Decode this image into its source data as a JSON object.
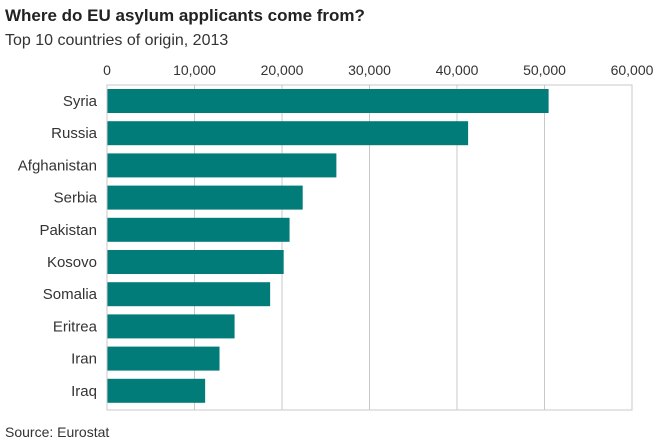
{
  "header": {
    "title": "Where do EU asylum applicants come from?",
    "subtitle": "Top 10 countries of origin, 2013"
  },
  "footer": {
    "source": "Source: Eurostat"
  },
  "colors": {
    "bar": "#017c78",
    "grid": "#c8c8c8",
    "frame": "#c8c8c8",
    "text": "#333333"
  },
  "chart_data": {
    "type": "bar",
    "orientation": "horizontal",
    "title": "Where do EU asylum applicants come from?",
    "subtitle": "Top 10 countries of origin, 2013",
    "categories": [
      "Syria",
      "Russia",
      "Afghanistan",
      "Serbia",
      "Pakistan",
      "Kosovo",
      "Somalia",
      "Eritrea",
      "Iran",
      "Iraq"
    ],
    "values": [
      50470,
      41270,
      26215,
      22365,
      20865,
      20190,
      18645,
      14580,
      12860,
      11215
    ],
    "xlim": [
      0,
      60000
    ],
    "ticks": [
      0,
      10000,
      20000,
      30000,
      40000,
      50000,
      60000
    ],
    "tick_labels": [
      "0",
      "10,000",
      "20,000",
      "30,000",
      "40,000",
      "50,000",
      "60,000"
    ],
    "xlabel": "",
    "ylabel": "",
    "axis_position": "top",
    "grid": true,
    "legend": false
  }
}
